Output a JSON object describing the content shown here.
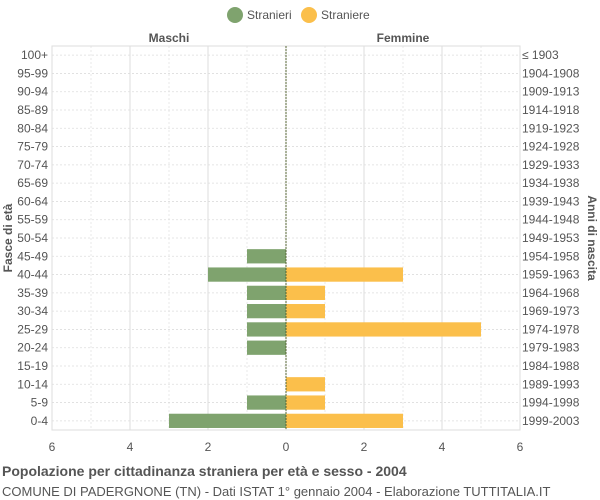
{
  "colors": {
    "males": "#7fa36e",
    "females": "#fbbf4b",
    "grid": "#dddddd",
    "center_line": "#556633",
    "text": "#555555"
  },
  "chart_data": {
    "type": "bar",
    "orientation": "horizontal-pyramid",
    "title": "Popolazione per cittadinanza straniera per età e sesso - 2004",
    "subtitle": "COMUNE DI PADERGNONE (TN) - Dati ISTAT 1° gennaio 2004 - Elaborazione TUTTITALIA.IT",
    "left_header": "Maschi",
    "right_header": "Femmine",
    "ylabel_left": "Fasce di età",
    "ylabel_right": "Anni di nascita",
    "age_groups": [
      "100+",
      "95-99",
      "90-94",
      "85-89",
      "80-84",
      "75-79",
      "70-74",
      "65-69",
      "60-64",
      "55-59",
      "50-54",
      "45-49",
      "40-44",
      "35-39",
      "30-34",
      "25-29",
      "20-24",
      "15-19",
      "10-14",
      "5-9",
      "0-4"
    ],
    "birth_years": [
      "≤ 1903",
      "1904-1908",
      "1909-1913",
      "1914-1918",
      "1919-1923",
      "1924-1928",
      "1929-1933",
      "1934-1938",
      "1939-1943",
      "1944-1948",
      "1949-1953",
      "1954-1958",
      "1959-1963",
      "1964-1968",
      "1969-1973",
      "1974-1978",
      "1979-1983",
      "1984-1988",
      "1989-1993",
      "1994-1998",
      "1999-2003"
    ],
    "series": [
      {
        "name": "Stranieri",
        "side": "left",
        "values": [
          0,
          0,
          0,
          0,
          0,
          0,
          0,
          0,
          0,
          0,
          0,
          1,
          2,
          1,
          1,
          1,
          1,
          0,
          0,
          1,
          3
        ]
      },
      {
        "name": "Straniere",
        "side": "right",
        "values": [
          0,
          0,
          0,
          0,
          0,
          0,
          0,
          0,
          0,
          0,
          0,
          0,
          3,
          1,
          1,
          5,
          0,
          0,
          1,
          1,
          3
        ]
      }
    ],
    "x_ticks": [
      "6",
      "4",
      "2",
      "0",
      "2",
      "4",
      "6"
    ],
    "xlim": [
      -6,
      6
    ],
    "grid": true,
    "legend_position": "top-center"
  }
}
